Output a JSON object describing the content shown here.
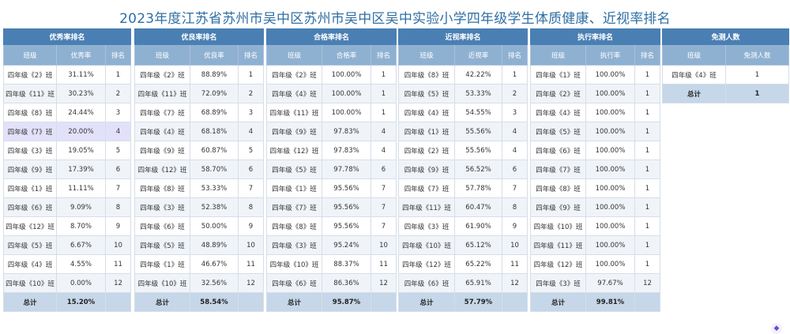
{
  "title": "2023年度江苏省苏州市吴中区苏州市吴中区吴中实验小学四年级学生体质健康、近视率排名",
  "total_label": "总计",
  "tables": [
    {
      "id": "excellent",
      "title": "优秀率排名",
      "headers": [
        "班级",
        "优秀率",
        "排名"
      ],
      "rows": [
        [
          "四年级《2》班",
          "31.11%",
          "1"
        ],
        [
          "四年级《11》班",
          "30.23%",
          "2"
        ],
        [
          "四年级《8》班",
          "24.44%",
          "3"
        ],
        [
          "四年级《7》班",
          "20.00%",
          "4"
        ],
        [
          "四年级《3》班",
          "19.05%",
          "5"
        ],
        [
          "四年级《9》班",
          "17.39%",
          "6"
        ],
        [
          "四年级《1》班",
          "11.11%",
          "7"
        ],
        [
          "四年级《6》班",
          "9.09%",
          "8"
        ],
        [
          "四年级《12》班",
          "8.70%",
          "9"
        ],
        [
          "四年级《5》班",
          "6.67%",
          "10"
        ],
        [
          "四年级《4》班",
          "4.55%",
          "11"
        ],
        [
          "四年级《10》班",
          "0.00%",
          "12"
        ]
      ],
      "total": "15.20%"
    },
    {
      "id": "good",
      "title": "优良率排名",
      "headers": [
        "班级",
        "优良率",
        "排名"
      ],
      "rows": [
        [
          "四年级《2》班",
          "88.89%",
          "1"
        ],
        [
          "四年级《11》班",
          "72.09%",
          "2"
        ],
        [
          "四年级《7》班",
          "68.89%",
          "3"
        ],
        [
          "四年级《4》班",
          "68.18%",
          "4"
        ],
        [
          "四年级《9》班",
          "60.87%",
          "5"
        ],
        [
          "四年级《12》班",
          "58.70%",
          "6"
        ],
        [
          "四年级《8》班",
          "53.33%",
          "7"
        ],
        [
          "四年级《3》班",
          "52.38%",
          "8"
        ],
        [
          "四年级《6》班",
          "50.00%",
          "9"
        ],
        [
          "四年级《5》班",
          "48.89%",
          "10"
        ],
        [
          "四年级《1》班",
          "46.67%",
          "11"
        ],
        [
          "四年级《10》班",
          "32.56%",
          "12"
        ]
      ],
      "total": "58.54%"
    },
    {
      "id": "pass",
      "title": "合格率排名",
      "headers": [
        "班级",
        "合格率",
        "排名"
      ],
      "rows": [
        [
          "四年级《2》班",
          "100.00%",
          "1"
        ],
        [
          "四年级《4》班",
          "100.00%",
          "1"
        ],
        [
          "四年级《11》班",
          "100.00%",
          "1"
        ],
        [
          "四年级《9》班",
          "97.83%",
          "4"
        ],
        [
          "四年级《12》班",
          "97.83%",
          "4"
        ],
        [
          "四年级《5》班",
          "97.78%",
          "6"
        ],
        [
          "四年级《1》班",
          "95.56%",
          "7"
        ],
        [
          "四年级《7》班",
          "95.56%",
          "7"
        ],
        [
          "四年级《8》班",
          "95.56%",
          "7"
        ],
        [
          "四年级《3》班",
          "95.24%",
          "10"
        ],
        [
          "四年级《10》班",
          "88.37%",
          "11"
        ],
        [
          "四年级《6》班",
          "86.36%",
          "12"
        ]
      ],
      "total": "95.87%"
    },
    {
      "id": "myopia",
      "title": "近视率排名",
      "headers": [
        "班级",
        "近视率",
        "排名"
      ],
      "rows": [
        [
          "四年级《8》班",
          "42.22%",
          "1"
        ],
        [
          "四年级《5》班",
          "53.33%",
          "2"
        ],
        [
          "四年级《4》班",
          "54.55%",
          "3"
        ],
        [
          "四年级《1》班",
          "55.56%",
          "4"
        ],
        [
          "四年级《2》班",
          "55.56%",
          "4"
        ],
        [
          "四年级《9》班",
          "56.52%",
          "6"
        ],
        [
          "四年级《7》班",
          "57.78%",
          "7"
        ],
        [
          "四年级《11》班",
          "60.47%",
          "8"
        ],
        [
          "四年级《3》班",
          "61.90%",
          "9"
        ],
        [
          "四年级《10》班",
          "65.12%",
          "10"
        ],
        [
          "四年级《12》班",
          "65.22%",
          "11"
        ],
        [
          "四年级《6》班",
          "65.91%",
          "12"
        ]
      ],
      "total": "57.79%"
    },
    {
      "id": "execution",
      "title": "执行率排名",
      "headers": [
        "班级",
        "执行率",
        "排名"
      ],
      "rows": [
        [
          "四年级《1》班",
          "100.00%",
          "1"
        ],
        [
          "四年级《2》班",
          "100.00%",
          "1"
        ],
        [
          "四年级《4》班",
          "100.00%",
          "1"
        ],
        [
          "四年级《5》班",
          "100.00%",
          "1"
        ],
        [
          "四年级《6》班",
          "100.00%",
          "1"
        ],
        [
          "四年级《7》班",
          "100.00%",
          "1"
        ],
        [
          "四年级《8》班",
          "100.00%",
          "1"
        ],
        [
          "四年级《9》班",
          "100.00%",
          "1"
        ],
        [
          "四年级《10》班",
          "100.00%",
          "1"
        ],
        [
          "四年级《11》班",
          "100.00%",
          "1"
        ],
        [
          "四年级《12》班",
          "100.00%",
          "1"
        ],
        [
          "四年级《3》班",
          "97.67%",
          "12"
        ]
      ],
      "total": "99.81%"
    },
    {
      "id": "exempt",
      "title": "免测人数",
      "headers": [
        "班级",
        "免测人数"
      ],
      "rows": [
        [
          "四年级《4》班",
          "1"
        ]
      ],
      "total": "1"
    }
  ],
  "highlight": {
    "table": "excellent",
    "row": 3,
    "color": "#e3e1fa"
  },
  "colors": {
    "title": "#2f6fa3",
    "header": "#4a7fb3",
    "subheader": "#8fb1d1",
    "total": "#c5d7e8"
  },
  "corner_icon": "assistant-icon"
}
